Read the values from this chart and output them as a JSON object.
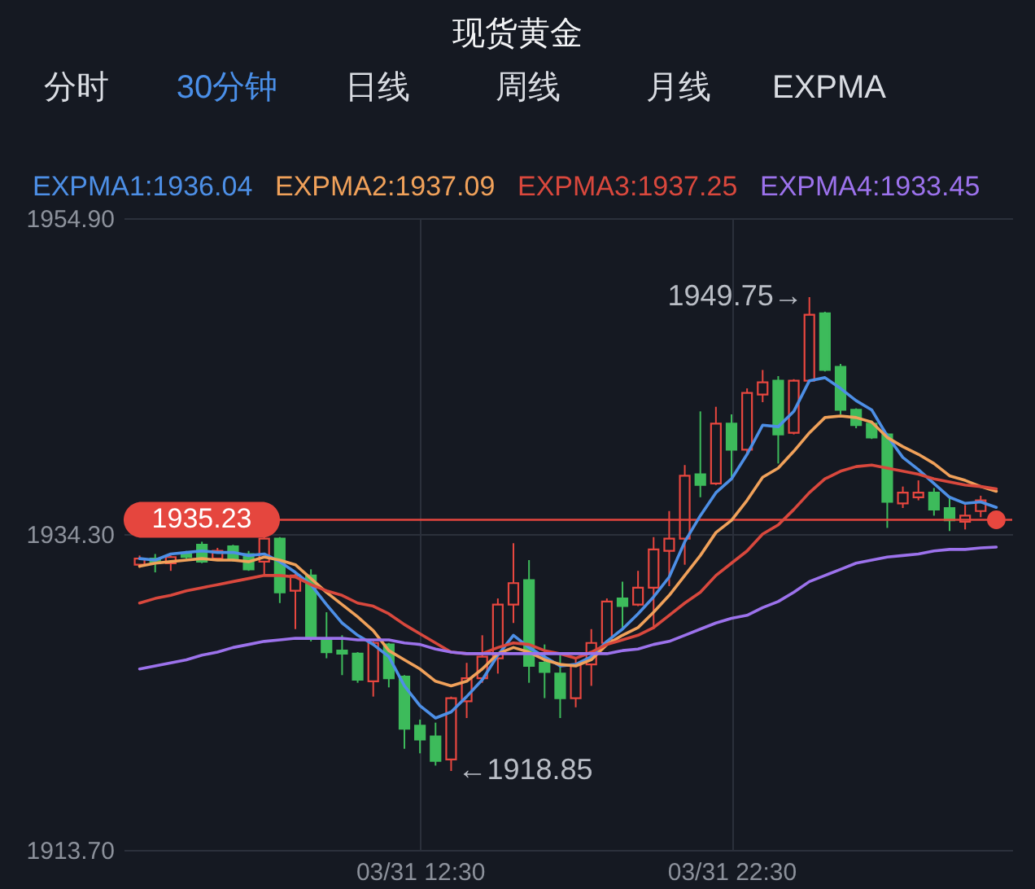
{
  "chart_data": {
    "type": "candlestick",
    "title": "现货黄金",
    "categories": [
      null,
      null,
      null,
      null,
      null,
      null,
      null,
      null,
      null,
      null,
      null,
      null,
      null,
      null,
      null,
      null,
      null,
      null,
      "03/31 12:30",
      null,
      null,
      null,
      null,
      null,
      null,
      null,
      null,
      null,
      null,
      null,
      null,
      null,
      null,
      null,
      null,
      null,
      null,
      null,
      "03/31 22:30",
      null,
      null,
      null,
      null,
      null,
      null,
      null,
      null,
      null,
      null,
      null,
      null,
      null,
      null,
      null,
      null,
      null
    ],
    "ohlc": [
      [
        1932.3,
        1932.9,
        1932.1,
        1932.7
      ],
      [
        1932.7,
        1933.0,
        1931.8,
        1932.4
      ],
      [
        1932.4,
        1932.9,
        1931.9,
        1932.8
      ],
      [
        1933.0,
        1933.2,
        1932.7,
        1932.8
      ],
      [
        1933.6,
        1933.8,
        1932.4,
        1932.5
      ],
      [
        1932.7,
        1933.4,
        1932.6,
        1933.2
      ],
      [
        1933.5,
        1933.6,
        1932.5,
        1932.6
      ],
      [
        1933.0,
        1933.2,
        1931.9,
        1932.0
      ],
      [
        1932.5,
        1934.1,
        1931.6,
        1934.0
      ],
      [
        1934.0,
        1934.1,
        1929.8,
        1930.5
      ],
      [
        1930.6,
        1931.7,
        1928.1,
        1931.6
      ],
      [
        1931.6,
        1932.0,
        1927.3,
        1927.5
      ],
      [
        1927.4,
        1929.2,
        1926.2,
        1926.6
      ],
      [
        1926.7,
        1927.7,
        1925.1,
        1926.5
      ],
      [
        1926.5,
        1926.6,
        1924.6,
        1924.8
      ],
      [
        1924.7,
        1927.3,
        1923.7,
        1927.2
      ],
      [
        1927.1,
        1927.2,
        1924.3,
        1924.9
      ],
      [
        1925.0,
        1925.1,
        1920.3,
        1921.6
      ],
      [
        1921.8,
        1922.2,
        1920.0,
        1920.9
      ],
      [
        1921.1,
        1922.0,
        1919.2,
        1919.5
      ],
      [
        1919.6,
        1923.7,
        1918.85,
        1923.6
      ],
      [
        1923.4,
        1925.9,
        1922.3,
        1924.9
      ],
      [
        1924.9,
        1927.7,
        1924.6,
        1926.3
      ],
      [
        1926.2,
        1930.1,
        1925.2,
        1929.7
      ],
      [
        1929.7,
        1933.7,
        1928.5,
        1931.1
      ],
      [
        1931.3,
        1932.6,
        1924.6,
        1925.7
      ],
      [
        1925.9,
        1927.1,
        1923.6,
        1925.3
      ],
      [
        1925.2,
        1926.4,
        1922.3,
        1923.6
      ],
      [
        1923.6,
        1926.2,
        1923.0,
        1925.8
      ],
      [
        1925.8,
        1928.1,
        1924.4,
        1927.2
      ],
      [
        1927.2,
        1930.1,
        1927.1,
        1929.9
      ],
      [
        1930.1,
        1931.2,
        1928.1,
        1929.6
      ],
      [
        1929.7,
        1931.9,
        1929.6,
        1930.8
      ],
      [
        1930.8,
        1934.1,
        1928.1,
        1933.3
      ],
      [
        1933.2,
        1935.8,
        1930.9,
        1934.0
      ],
      [
        1934.0,
        1938.8,
        1932.3,
        1938.1
      ],
      [
        1938.2,
        1942.3,
        1936.7,
        1937.5
      ],
      [
        1937.6,
        1942.6,
        1937.5,
        1941.5
      ],
      [
        1941.5,
        1942.1,
        1937.8,
        1939.8
      ],
      [
        1939.8,
        1943.8,
        1939.5,
        1943.5
      ],
      [
        1943.4,
        1945.0,
        1942.9,
        1944.2
      ],
      [
        1944.3,
        1944.6,
        1938.9,
        1940.8
      ],
      [
        1940.9,
        1944.4,
        1940.8,
        1944.3
      ],
      [
        1944.3,
        1949.75,
        1944.2,
        1948.6
      ],
      [
        1948.7,
        1948.8,
        1944.9,
        1945.0
      ],
      [
        1945.2,
        1945.4,
        1942.1,
        1942.4
      ],
      [
        1942.4,
        1942.5,
        1941.2,
        1941.4
      ],
      [
        1941.5,
        1941.7,
        1940.5,
        1940.6
      ],
      [
        1940.8,
        1940.9,
        1934.7,
        1936.4
      ],
      [
        1936.3,
        1937.4,
        1936.0,
        1937.0
      ],
      [
        1936.7,
        1937.8,
        1936.5,
        1937.0
      ],
      [
        1937.0,
        1937.3,
        1935.5,
        1935.9
      ],
      [
        1936.0,
        1936.7,
        1934.5,
        1935.2
      ],
      [
        1935.1,
        1936.2,
        1934.6,
        1935.5
      ],
      [
        1935.8,
        1936.8,
        1935.4,
        1936.5
      ],
      null
    ],
    "colors": [
      "#e8473f",
      "#3dbb5b",
      "#e8473f",
      "#3dbb5b",
      "#3dbb5b",
      "#e8473f",
      "#3dbb5b",
      "#3dbb5b",
      "#e8473f",
      "#3dbb5b",
      "#e8473f",
      "#3dbb5b",
      "#3dbb5b",
      "#3dbb5b",
      "#3dbb5b",
      "#e8473f",
      "#3dbb5b",
      "#3dbb5b",
      "#3dbb5b",
      "#3dbb5b",
      "#e8473f",
      "#e8473f",
      "#e8473f",
      "#e8473f",
      "#e8473f",
      "#3dbb5b",
      "#3dbb5b",
      "#3dbb5b",
      "#e8473f",
      "#e8473f",
      "#e8473f",
      "#3dbb5b",
      "#e8473f",
      "#e8473f",
      "#e8473f",
      "#e8473f",
      "#3dbb5b",
      "#e8473f",
      "#3dbb5b",
      "#e8473f",
      "#e8473f",
      "#3dbb5b",
      "#e8473f",
      "#e8473f",
      "#3dbb5b",
      "#3dbb5b",
      "#3dbb5b",
      "#3dbb5b",
      "#3dbb5b",
      "#e8473f",
      "#e8473f",
      "#3dbb5b",
      "#3dbb5b",
      "#e8473f",
      "#e8473f",
      null
    ],
    "series": [
      {
        "name": "EXPMA1:1936.04",
        "type": "line",
        "color": "#4d8fe6",
        "values": [
          1932.7,
          1932.6,
          1933.0,
          1933.1,
          1933.2,
          1933.1,
          1933.1,
          1932.9,
          1933.0,
          1932.5,
          1931.8,
          1931.0,
          1929.7,
          1928.5,
          1927.7,
          1927.1,
          1926.3,
          1924.4,
          1923.1,
          1922.3,
          1922.7,
          1923.7,
          1924.8,
          1926.4,
          1927.7,
          1926.9,
          1926.3,
          1925.7,
          1925.8,
          1926.3,
          1927.3,
          1928.1,
          1929.1,
          1930.2,
          1931.5,
          1933.8,
          1935.5,
          1937.0,
          1937.9,
          1939.5,
          1941.4,
          1941.3,
          1942.3,
          1944.3,
          1944.5,
          1943.8,
          1943.0,
          1942.4,
          1940.7,
          1939.3,
          1938.5,
          1937.6,
          1936.7,
          1936.3,
          1936.4,
          1936.04
        ]
      },
      {
        "name": "EXPMA2:1937.09",
        "type": "line",
        "color": "#f0a15a",
        "values": [
          1932.2,
          1932.4,
          1932.5,
          1932.6,
          1932.7,
          1932.6,
          1932.6,
          1932.5,
          1932.8,
          1932.6,
          1932.3,
          1931.4,
          1930.5,
          1929.7,
          1928.9,
          1928.0,
          1926.7,
          1926.1,
          1925.5,
          1924.7,
          1924.4,
          1924.7,
          1925.5,
          1926.5,
          1926.9,
          1926.6,
          1926.1,
          1925.8,
          1925.7,
          1926.1,
          1927.1,
          1927.7,
          1928.2,
          1929.2,
          1930.3,
          1931.6,
          1932.9,
          1934.4,
          1935.2,
          1936.5,
          1938.0,
          1938.6,
          1939.7,
          1940.9,
          1941.9,
          1942.0,
          1941.9,
          1941.6,
          1940.6,
          1940.0,
          1939.5,
          1938.9,
          1938.1,
          1937.8,
          1937.4,
          1937.09
        ]
      },
      {
        "name": "EXPMA3:1937.25",
        "type": "line",
        "color": "#d9483d",
        "values": [
          1929.8,
          1930.1,
          1930.3,
          1930.6,
          1930.8,
          1931.0,
          1931.2,
          1931.4,
          1931.6,
          1931.6,
          1931.5,
          1931.0,
          1930.6,
          1930.3,
          1929.8,
          1929.6,
          1929.1,
          1928.4,
          1927.8,
          1927.2,
          1926.6,
          1926.5,
          1926.5,
          1926.9,
          1927.2,
          1927.1,
          1926.7,
          1926.5,
          1926.2,
          1926.6,
          1927.1,
          1927.4,
          1927.7,
          1928.2,
          1929.0,
          1929.8,
          1930.5,
          1931.6,
          1932.4,
          1933.2,
          1934.3,
          1934.9,
          1935.9,
          1937.0,
          1937.9,
          1938.4,
          1938.7,
          1938.8,
          1938.6,
          1938.4,
          1938.2,
          1937.9,
          1937.7,
          1937.5,
          1937.4,
          1937.25
        ]
      },
      {
        "name": "EXPMA4:1933.45",
        "type": "line",
        "color": "#9c72ec",
        "values": [
          1925.5,
          1925.7,
          1925.9,
          1926.1,
          1926.4,
          1926.6,
          1926.9,
          1927.1,
          1927.3,
          1927.4,
          1927.5,
          1927.5,
          1927.5,
          1927.5,
          1927.4,
          1927.4,
          1927.4,
          1927.2,
          1927.1,
          1926.8,
          1926.6,
          1926.5,
          1926.5,
          1926.5,
          1926.5,
          1926.5,
          1926.5,
          1926.5,
          1926.5,
          1926.5,
          1926.5,
          1926.7,
          1926.8,
          1927.1,
          1927.3,
          1927.7,
          1928.1,
          1928.5,
          1928.8,
          1929.0,
          1929.5,
          1929.9,
          1930.5,
          1931.2,
          1931.6,
          1932.0,
          1932.4,
          1932.6,
          1932.8,
          1932.9,
          1933.0,
          1933.2,
          1933.3,
          1933.3,
          1933.4,
          1933.45
        ]
      },
      {
        "type": "scatter",
        "color": "#e8473f",
        "values": [
          null,
          null,
          null,
          null,
          null,
          null,
          null,
          null,
          null,
          null,
          null,
          null,
          null,
          null,
          null,
          null,
          null,
          null,
          null,
          null,
          null,
          null,
          null,
          null,
          null,
          null,
          null,
          null,
          null,
          null,
          null,
          null,
          null,
          null,
          null,
          null,
          null,
          null,
          null,
          null,
          null,
          null,
          null,
          null,
          null,
          null,
          null,
          null,
          null,
          null,
          null,
          null,
          null,
          null,
          null,
          1935.23
        ]
      }
    ],
    "ylim": [
      1913.7,
      1954.9
    ],
    "yticks": [
      {
        "value": 1954.9,
        "label": "1954.90"
      },
      {
        "value": 1934.3,
        "label": "1934.30"
      },
      {
        "value": 1913.7,
        "label": "1913.70"
      }
    ],
    "ref_lines": [
      {
        "axis": "y",
        "value": 1935.23,
        "label": "1935.23",
        "color": "#e5463e"
      }
    ],
    "annotations": [
      "分时",
      "30分钟",
      "日线",
      "周线",
      "月线",
      "EXPMA",
      "1949.75→",
      "←1918.85"
    ],
    "legend": "top",
    "grid": true
  }
}
